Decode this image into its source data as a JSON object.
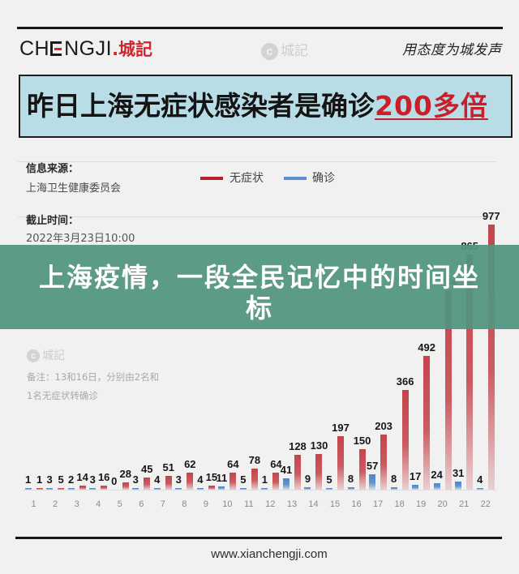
{
  "header": {
    "logo_part1": "CH",
    "logo_e": "E",
    "logo_part2": "NGJI",
    "logo_dot": ".",
    "logo_cn": "城記",
    "watermark_glyph": "c",
    "watermark_text": "城記",
    "slogan": "用态度为城发声"
  },
  "headline": {
    "text": "昨日上海无症状感染者是确诊",
    "highlight": "200多倍"
  },
  "info": {
    "source_label": "信息来源：",
    "source_value": "上海卫生健康委员会",
    "cutoff_label": "截止时间：",
    "cutoff_value": "2022年3月23日10:00"
  },
  "legend": [
    {
      "label": "无症状",
      "color": "#b51f2d"
    },
    {
      "label": "确诊",
      "color": "#5b8fcf"
    }
  ],
  "chart_watermark": {
    "glyph": "c",
    "text": "城記"
  },
  "note": {
    "line1": "备注：13和16日，分别由2名和",
    "line2": "1名无症状转确诊"
  },
  "banner": {
    "title": "上海疫情，一段全民记忆中的时间坐标"
  },
  "footer": {
    "url": "www.xianchengji.com"
  },
  "chart_data": {
    "type": "bar",
    "title": "昨日上海无症状感染者是确诊200多倍",
    "xlabel": "",
    "ylabel": "",
    "categories": [
      "1",
      "2",
      "3",
      "4",
      "5",
      "6",
      "7",
      "8",
      "9",
      "10",
      "11",
      "12",
      "13",
      "14",
      "15",
      "16",
      "17",
      "18",
      "19",
      "20",
      "21",
      "22"
    ],
    "series": [
      {
        "name": "确诊",
        "color": "#4f86c6",
        "values": [
          1,
          3,
          2,
          3,
          0,
          3,
          4,
          3,
          4,
          11,
          5,
          1,
          41,
          9,
          5,
          8,
          57,
          8,
          17,
          24,
          31,
          4
        ]
      },
      {
        "name": "无症状",
        "color": "#c5444b",
        "values": [
          1,
          5,
          14,
          16,
          28,
          45,
          51,
          62,
          15,
          64,
          78,
          64,
          128,
          130,
          197,
          150,
          203,
          366,
          492,
          734,
          865,
          977
        ]
      }
    ],
    "ylim": [
      0,
      1000
    ],
    "grid": false,
    "legend_position": "top",
    "data_labels": true
  }
}
